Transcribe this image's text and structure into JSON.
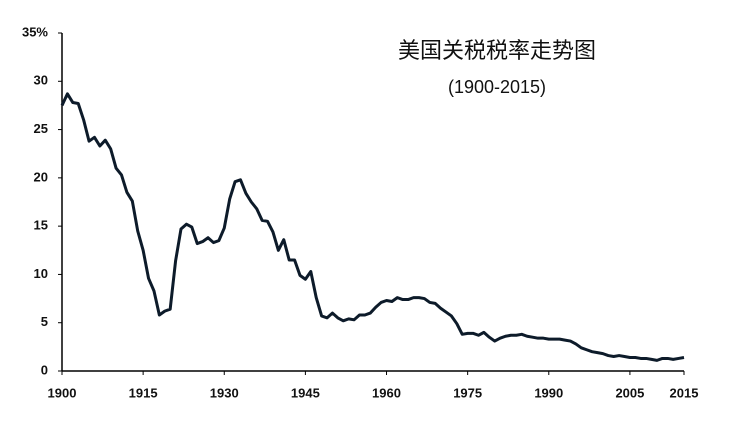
{
  "chart_data": {
    "type": "line",
    "title": "美国关税税率走势图",
    "subtitle": "(1900-2015)",
    "x": [
      1900,
      1901,
      1902,
      1903,
      1904,
      1905,
      1906,
      1907,
      1908,
      1909,
      1910,
      1911,
      1912,
      1913,
      1914,
      1915,
      1916,
      1917,
      1918,
      1919,
      1920,
      1921,
      1922,
      1923,
      1924,
      1925,
      1926,
      1927,
      1928,
      1929,
      1930,
      1931,
      1932,
      1933,
      1934,
      1935,
      1936,
      1937,
      1938,
      1939,
      1940,
      1941,
      1942,
      1943,
      1944,
      1945,
      1946,
      1947,
      1948,
      1949,
      1950,
      1951,
      1952,
      1953,
      1954,
      1955,
      1956,
      1957,
      1958,
      1959,
      1960,
      1961,
      1962,
      1963,
      1964,
      1965,
      1966,
      1967,
      1968,
      1969,
      1970,
      1971,
      1972,
      1973,
      1974,
      1975,
      1976,
      1977,
      1978,
      1979,
      1980,
      1981,
      1982,
      1983,
      1984,
      1985,
      1986,
      1987,
      1988,
      1989,
      1990,
      1991,
      1992,
      1993,
      1994,
      1995,
      1996,
      1997,
      1998,
      1999,
      2000,
      2001,
      2002,
      2003,
      2004,
      2005,
      2006,
      2007,
      2008,
      2009,
      2010,
      2011,
      2012,
      2013,
      2014,
      2015
    ],
    "series": [
      {
        "color": "#0d1b2a",
        "values": [
          27.5,
          28.7,
          27.8,
          27.7,
          26,
          23.8,
          24.2,
          23.3,
          23.9,
          23,
          21,
          20.3,
          18.5,
          17.6,
          14.5,
          12.5,
          9.6,
          8.3,
          5.8,
          6.2,
          6.4,
          11.4,
          14.7,
          15.2,
          14.9,
          13.2,
          13.4,
          13.8,
          13.3,
          13.5,
          14.8,
          17.8,
          19.6,
          19.8,
          18.4,
          17.5,
          16.8,
          15.6,
          15.5,
          14.4,
          12.5,
          13.6,
          11.5,
          11.5,
          9.9,
          9.5,
          10.3,
          7.6,
          5.7,
          5.5,
          6.0,
          5.5,
          5.2,
          5.4,
          5.3,
          5.8,
          5.8,
          6.0,
          6.6,
          7.1,
          7.3,
          7.2,
          7.6,
          7.4,
          7.4,
          7.6,
          7.6,
          7.5,
          7.1,
          7.0,
          6.5,
          6.1,
          5.7,
          4.9,
          3.8,
          3.9,
          3.9,
          3.7,
          4.0,
          3.5,
          3.1,
          3.4,
          3.6,
          3.7,
          3.7,
          3.8,
          3.6,
          3.5,
          3.4,
          3.4,
          3.3,
          3.3,
          3.3,
          3.2,
          3.1,
          2.8,
          2.4,
          2.2,
          2.0,
          1.9,
          1.8,
          1.6,
          1.5,
          1.6,
          1.5,
          1.4,
          1.4,
          1.3,
          1.3,
          1.2,
          1.1,
          1.3,
          1.3,
          1.2,
          1.3,
          1.4
        ]
      }
    ],
    "xlim": [
      1900,
      2015
    ],
    "xticks": [
      1900,
      1915,
      1930,
      1945,
      1960,
      1975,
      1990,
      2005,
      2015
    ],
    "ylim": [
      0,
      35
    ],
    "yticks": [
      0,
      5,
      10,
      15,
      20,
      25,
      30,
      {
        "value": 35,
        "label": "35%"
      }
    ],
    "title_color": "#1a8a80",
    "subtitle_color": "#a01818"
  }
}
